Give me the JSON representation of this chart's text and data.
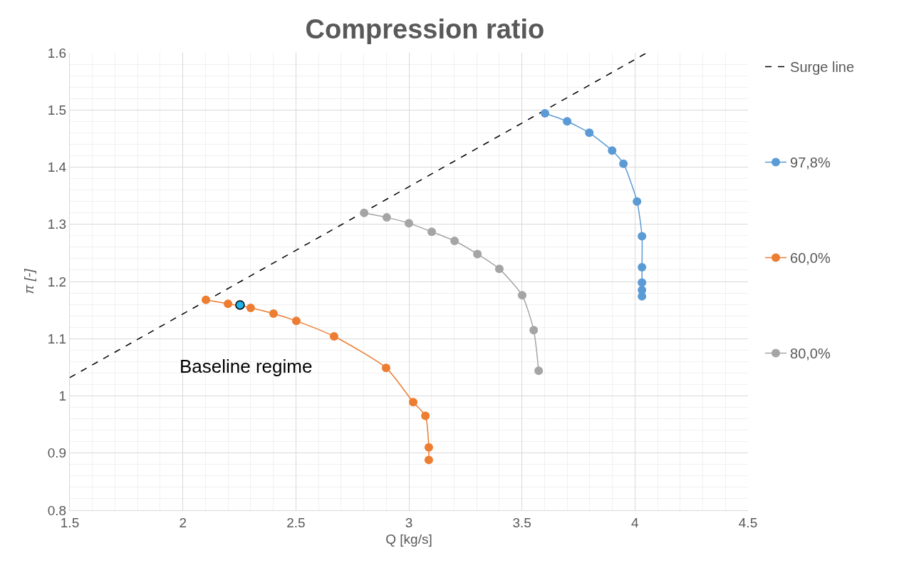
{
  "chart_data": {
    "type": "line",
    "title": "Compression ratio",
    "xlabel": "Q [kg/s]",
    "ylabel": "π [-]",
    "xlim": [
      1.5,
      4.5
    ],
    "xticks": [
      1.5,
      2,
      2.5,
      3,
      3.5,
      4,
      4.5
    ],
    "ylim": [
      0.8,
      1.6
    ],
    "yticks": [
      0.8,
      0.9,
      1,
      1.1,
      1.2,
      1.3,
      1.4,
      1.5,
      1.6
    ],
    "grid": true,
    "legend": "right",
    "marker": "circle",
    "series": [
      {
        "name": "Surge line",
        "color": "#000000",
        "line_style": "dashed",
        "marker": "none",
        "x": [
          1.5,
          4.053
        ],
        "values": [
          1.032,
          1.6
        ]
      },
      {
        "name": "97,8%",
        "color": "#5b9bd5",
        "x": [
          3.602,
          3.7,
          3.798,
          3.899,
          3.949,
          4.009,
          4.031,
          4.031,
          4.031,
          4.031,
          4.031
        ],
        "values": [
          1.494,
          1.48,
          1.46,
          1.429,
          1.406,
          1.34,
          1.279,
          1.225,
          1.198,
          1.185,
          1.174
        ]
      },
      {
        "name": "60,0%",
        "color": "#ed7d31",
        "x": [
          2.102,
          2.2,
          2.3,
          2.401,
          2.502,
          2.669,
          2.899,
          3.019,
          3.073,
          3.088,
          3.088
        ],
        "values": [
          1.168,
          1.161,
          1.154,
          1.144,
          1.131,
          1.104,
          1.049,
          0.989,
          0.965,
          0.91,
          0.888
        ]
      },
      {
        "name": "80,0%",
        "color": "#a5a5a5",
        "x": [
          2.802,
          2.902,
          3.0,
          3.101,
          3.202,
          3.303,
          3.4,
          3.501,
          3.552,
          3.574
        ],
        "values": [
          1.32,
          1.312,
          1.302,
          1.287,
          1.271,
          1.248,
          1.222,
          1.176,
          1.115,
          1.044
        ]
      },
      {
        "type": "scatter",
        "color": "#1fb3e8",
        "x": [
          2.253
        ],
        "values": [
          1.159
        ]
      }
    ],
    "annotations": [
      {
        "text": "Baseline regime",
        "x": 2.253,
        "y": 1.159
      }
    ]
  }
}
